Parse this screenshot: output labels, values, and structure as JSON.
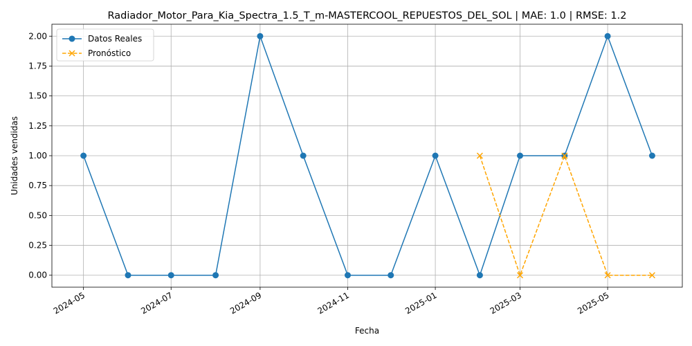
{
  "chart_data": {
    "type": "line",
    "title": "Radiador_Motor_Para_Kia_Spectra_1.5_T_m-MASTERCOOL_REPUESTOS_DEL_SOL | MAE: 1.0 | RMSE: 1.2",
    "xlabel": "Fecha",
    "ylabel": "Unidades vendidas",
    "xlim": [
      "2024-04-09",
      "2025-06-22"
    ],
    "ylim": [
      -0.1,
      2.1
    ],
    "grid": true,
    "legend_position": "top-left",
    "x_ticks": [
      "2024-05-01",
      "2024-07-01",
      "2024-09-01",
      "2024-11-01",
      "2025-01-01",
      "2025-03-01",
      "2025-05-01"
    ],
    "x_tick_labels": [
      "2024-05",
      "2024-07",
      "2024-09",
      "2024-11",
      "2025-01",
      "2025-03",
      "2025-05"
    ],
    "y_ticks": [
      0.0,
      0.25,
      0.5,
      0.75,
      1.0,
      1.25,
      1.5,
      1.75,
      2.0
    ],
    "y_tick_labels": [
      "0.00",
      "0.25",
      "0.50",
      "0.75",
      "1.00",
      "1.25",
      "1.50",
      "1.75",
      "2.00"
    ],
    "series": [
      {
        "name": "Datos Reales",
        "color": "#1f77b4",
        "style": "solid",
        "marker": "circle",
        "x": [
          "2024-05-01",
          "2024-06-01",
          "2024-07-01",
          "2024-08-01",
          "2024-09-01",
          "2024-10-01",
          "2024-11-01",
          "2024-12-01",
          "2025-01-01",
          "2025-02-01",
          "2025-03-01",
          "2025-04-01",
          "2025-05-01",
          "2025-06-01"
        ],
        "values": [
          1,
          0,
          0,
          0,
          2,
          1,
          0,
          0,
          1,
          0,
          1,
          1,
          2,
          1
        ]
      },
      {
        "name": "Pronóstico",
        "color": "#ffa500",
        "style": "dashed",
        "marker": "x",
        "x": [
          "2025-02-01",
          "2025-03-01",
          "2025-04-01",
          "2025-05-01",
          "2025-06-01"
        ],
        "values": [
          1,
          0,
          1,
          0,
          0
        ]
      }
    ]
  }
}
